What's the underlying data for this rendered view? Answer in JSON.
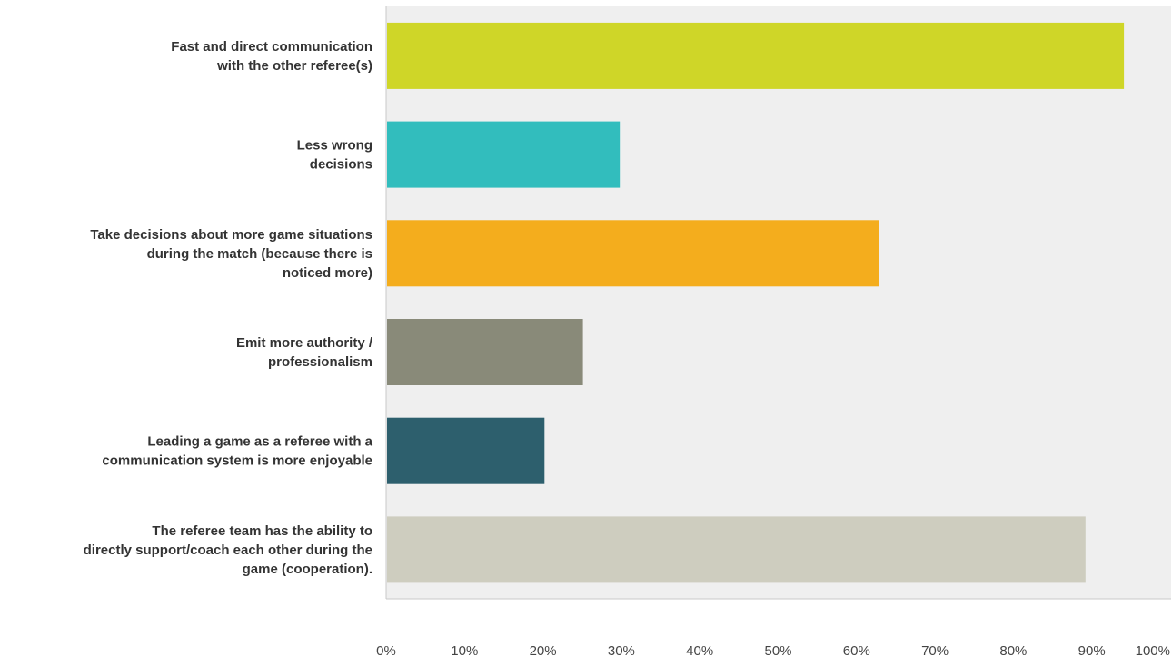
{
  "chart_data": {
    "type": "bar",
    "orientation": "horizontal",
    "categories": [
      [
        "Fast and direct communication",
        "with the other referee(s)"
      ],
      [
        "Less wrong",
        "decisions"
      ],
      [
        "Take decisions about more game situations",
        "during the match (because there is",
        "noticed more)"
      ],
      [
        "Emit more authority /",
        "professionalism"
      ],
      [
        "Leading a game as a referee with a",
        "communication system is more enjoyable"
      ],
      [
        "The referee team has the ability to",
        "directly support/coach each other during the",
        "game (cooperation)."
      ]
    ],
    "values": [
      94.1,
      29.8,
      62.9,
      25.1,
      20.2,
      89.2
    ],
    "colors": [
      "#cfd628",
      "#32bdbd",
      "#f4ad1d",
      "#898a79",
      "#2d5f6d",
      "#cecdbf"
    ],
    "xlim": [
      0,
      100
    ],
    "xticks": [
      "0%",
      "10%",
      "20%",
      "30%",
      "40%",
      "50%",
      "60%",
      "70%",
      "80%",
      "90%",
      "100%"
    ],
    "grid": false,
    "legend": "none"
  }
}
